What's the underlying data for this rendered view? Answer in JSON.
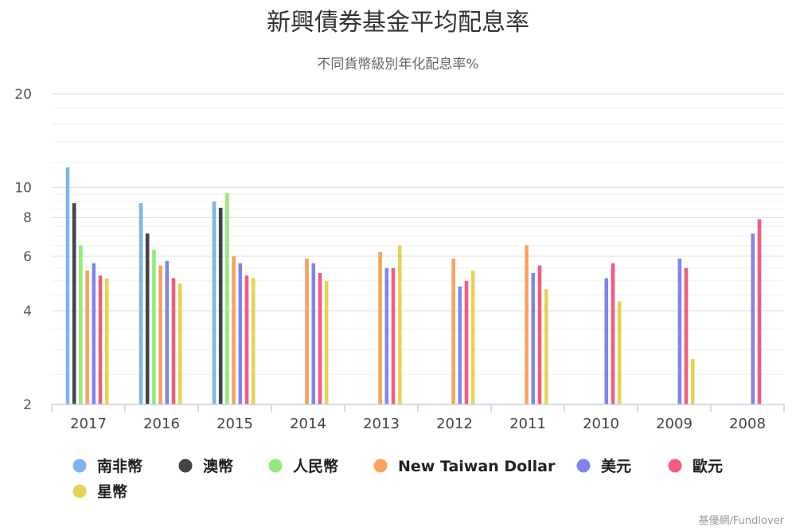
{
  "chart_data": {
    "type": "bar",
    "title": "新興債券基金平均配息率",
    "subtitle": "不同貨幣級別年化配息率%",
    "y_scale": "log",
    "ylim": [
      2,
      20
    ],
    "y_ticks": [
      "2",
      "4",
      "6",
      "8",
      "10",
      "20"
    ],
    "categories": [
      "2017",
      "2016",
      "2015",
      "2014",
      "2013",
      "2012",
      "2011",
      "2010",
      "2009",
      "2008"
    ],
    "series": [
      {
        "name": "南非幣",
        "color": "#7cb5ec",
        "values": [
          11.6,
          8.9,
          9.0,
          null,
          null,
          null,
          null,
          null,
          null,
          null
        ]
      },
      {
        "name": "澳幣",
        "color": "#434348",
        "values": [
          8.9,
          7.1,
          8.6,
          null,
          null,
          null,
          null,
          null,
          null,
          null
        ]
      },
      {
        "name": "人民幣",
        "color": "#90ed7d",
        "values": [
          6.5,
          6.3,
          9.6,
          null,
          null,
          null,
          null,
          null,
          null,
          null
        ]
      },
      {
        "name": "New Taiwan Dollar",
        "color": "#f7a35c",
        "values": [
          5.4,
          5.6,
          6.0,
          5.9,
          6.2,
          5.9,
          6.5,
          null,
          null,
          null
        ]
      },
      {
        "name": "美元",
        "color": "#8085e9",
        "values": [
          5.7,
          5.8,
          5.7,
          5.7,
          5.5,
          4.8,
          5.3,
          5.1,
          5.9,
          7.1
        ]
      },
      {
        "name": "歐元",
        "color": "#f15c80",
        "values": [
          5.2,
          5.1,
          5.2,
          5.3,
          5.5,
          5.0,
          5.6,
          5.7,
          5.5,
          7.9
        ]
      },
      {
        "name": "星幣",
        "color": "#e4d354",
        "values": [
          5.1,
          4.9,
          5.1,
          5.0,
          6.5,
          5.4,
          4.7,
          4.3,
          2.8,
          null
        ]
      }
    ],
    "legend_position": "bottom-left",
    "grid": true
  },
  "credit": "基優網/Fundlover"
}
